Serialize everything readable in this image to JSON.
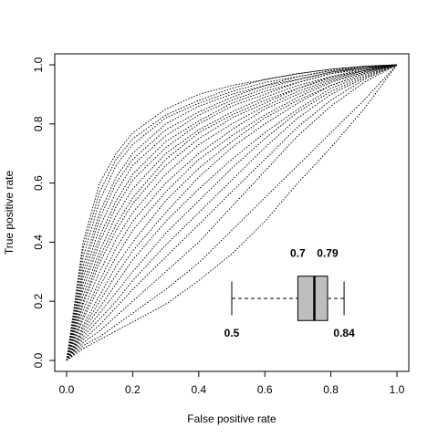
{
  "chart_data": {
    "type": "line",
    "title": "",
    "xlabel": "False positive rate",
    "ylabel": "True positive rate",
    "xlim": [
      0,
      1
    ],
    "ylim": [
      0,
      1
    ],
    "xticks": [
      "0.0",
      "0.2",
      "0.4",
      "0.6",
      "0.8",
      "1.0"
    ],
    "yticks": [
      "0.0",
      "0.2",
      "0.4",
      "0.6",
      "0.8",
      "1.0"
    ],
    "line_style": "dotted",
    "series": [
      {
        "x": [
          0,
          0.05,
          0.1,
          0.15,
          0.2,
          0.3,
          0.4,
          0.5,
          0.6,
          0.7,
          0.8,
          0.9,
          1
        ],
        "y": [
          0,
          0.4,
          0.6,
          0.7,
          0.77,
          0.85,
          0.9,
          0.93,
          0.95,
          0.97,
          0.985,
          0.995,
          1
        ]
      },
      {
        "x": [
          0,
          0.05,
          0.1,
          0.15,
          0.2,
          0.3,
          0.4,
          0.5,
          0.6,
          0.7,
          0.8,
          0.9,
          1
        ],
        "y": [
          0,
          0.38,
          0.57,
          0.68,
          0.75,
          0.83,
          0.88,
          0.92,
          0.95,
          0.97,
          0.985,
          0.995,
          1
        ]
      },
      {
        "x": [
          0,
          0.05,
          0.1,
          0.15,
          0.2,
          0.3,
          0.4,
          0.5,
          0.6,
          0.7,
          0.8,
          0.9,
          1
        ],
        "y": [
          0,
          0.35,
          0.54,
          0.66,
          0.73,
          0.82,
          0.87,
          0.91,
          0.94,
          0.96,
          0.98,
          0.995,
          1
        ]
      },
      {
        "x": [
          0,
          0.05,
          0.1,
          0.15,
          0.2,
          0.3,
          0.4,
          0.5,
          0.6,
          0.7,
          0.8,
          0.9,
          1
        ],
        "y": [
          0,
          0.32,
          0.5,
          0.62,
          0.7,
          0.8,
          0.86,
          0.9,
          0.93,
          0.96,
          0.98,
          0.99,
          1
        ]
      },
      {
        "x": [
          0,
          0.05,
          0.1,
          0.15,
          0.2,
          0.3,
          0.4,
          0.5,
          0.6,
          0.7,
          0.8,
          0.9,
          1
        ],
        "y": [
          0,
          0.3,
          0.48,
          0.6,
          0.68,
          0.78,
          0.84,
          0.89,
          0.93,
          0.95,
          0.975,
          0.99,
          1
        ]
      },
      {
        "x": [
          0,
          0.05,
          0.1,
          0.15,
          0.2,
          0.3,
          0.4,
          0.5,
          0.6,
          0.7,
          0.8,
          0.9,
          1
        ],
        "y": [
          0,
          0.28,
          0.45,
          0.57,
          0.66,
          0.76,
          0.83,
          0.88,
          0.92,
          0.95,
          0.975,
          0.99,
          1
        ]
      },
      {
        "x": [
          0,
          0.05,
          0.1,
          0.15,
          0.2,
          0.3,
          0.4,
          0.5,
          0.6,
          0.7,
          0.8,
          0.9,
          1
        ],
        "y": [
          0,
          0.26,
          0.42,
          0.54,
          0.63,
          0.74,
          0.81,
          0.87,
          0.91,
          0.94,
          0.97,
          0.99,
          1
        ]
      },
      {
        "x": [
          0,
          0.05,
          0.1,
          0.15,
          0.2,
          0.3,
          0.4,
          0.5,
          0.6,
          0.7,
          0.8,
          0.9,
          1
        ],
        "y": [
          0,
          0.24,
          0.4,
          0.52,
          0.61,
          0.72,
          0.8,
          0.86,
          0.9,
          0.94,
          0.97,
          0.985,
          1
        ]
      },
      {
        "x": [
          0,
          0.05,
          0.1,
          0.15,
          0.2,
          0.3,
          0.4,
          0.5,
          0.6,
          0.7,
          0.8,
          0.9,
          1
        ],
        "y": [
          0,
          0.22,
          0.37,
          0.49,
          0.58,
          0.7,
          0.78,
          0.84,
          0.89,
          0.93,
          0.96,
          0.985,
          1
        ]
      },
      {
        "x": [
          0,
          0.05,
          0.1,
          0.15,
          0.2,
          0.3,
          0.4,
          0.5,
          0.6,
          0.7,
          0.8,
          0.9,
          1
        ],
        "y": [
          0,
          0.2,
          0.35,
          0.46,
          0.55,
          0.68,
          0.77,
          0.83,
          0.88,
          0.92,
          0.96,
          0.98,
          1
        ]
      },
      {
        "x": [
          0,
          0.05,
          0.1,
          0.15,
          0.2,
          0.3,
          0.4,
          0.5,
          0.6,
          0.7,
          0.8,
          0.9,
          1
        ],
        "y": [
          0,
          0.19,
          0.33,
          0.44,
          0.53,
          0.66,
          0.75,
          0.82,
          0.87,
          0.92,
          0.955,
          0.98,
          1
        ]
      },
      {
        "x": [
          0,
          0.05,
          0.1,
          0.15,
          0.2,
          0.3,
          0.4,
          0.5,
          0.6,
          0.7,
          0.8,
          0.9,
          1
        ],
        "y": [
          0,
          0.17,
          0.3,
          0.41,
          0.5,
          0.63,
          0.73,
          0.8,
          0.86,
          0.91,
          0.95,
          0.98,
          1
        ]
      },
      {
        "x": [
          0,
          0.05,
          0.1,
          0.15,
          0.2,
          0.3,
          0.4,
          0.5,
          0.6,
          0.7,
          0.8,
          0.9,
          1
        ],
        "y": [
          0,
          0.15,
          0.27,
          0.38,
          0.47,
          0.6,
          0.7,
          0.78,
          0.85,
          0.9,
          0.945,
          0.975,
          1
        ]
      },
      {
        "x": [
          0,
          0.05,
          0.1,
          0.15,
          0.2,
          0.3,
          0.4,
          0.5,
          0.6,
          0.7,
          0.8,
          0.9,
          1
        ],
        "y": [
          0,
          0.14,
          0.25,
          0.35,
          0.44,
          0.57,
          0.68,
          0.76,
          0.83,
          0.89,
          0.94,
          0.975,
          1
        ]
      },
      {
        "x": [
          0,
          0.05,
          0.1,
          0.15,
          0.2,
          0.3,
          0.4,
          0.5,
          0.6,
          0.7,
          0.8,
          0.9,
          1
        ],
        "y": [
          0,
          0.12,
          0.22,
          0.32,
          0.4,
          0.54,
          0.65,
          0.74,
          0.82,
          0.88,
          0.93,
          0.97,
          1
        ]
      },
      {
        "x": [
          0,
          0.05,
          0.1,
          0.15,
          0.2,
          0.3,
          0.4,
          0.5,
          0.6,
          0.7,
          0.8,
          0.9,
          1
        ],
        "y": [
          0,
          0.11,
          0.2,
          0.29,
          0.37,
          0.5,
          0.62,
          0.72,
          0.8,
          0.87,
          0.93,
          0.97,
          1
        ]
      },
      {
        "x": [
          0,
          0.05,
          0.1,
          0.15,
          0.2,
          0.3,
          0.4,
          0.5,
          0.6,
          0.7,
          0.8,
          0.9,
          1
        ],
        "y": [
          0,
          0.1,
          0.18,
          0.26,
          0.34,
          0.47,
          0.58,
          0.68,
          0.77,
          0.85,
          0.92,
          0.965,
          1
        ]
      },
      {
        "x": [
          0,
          0.05,
          0.1,
          0.15,
          0.2,
          0.3,
          0.4,
          0.5,
          0.6,
          0.7,
          0.8,
          0.9,
          1
        ],
        "y": [
          0,
          0.09,
          0.16,
          0.23,
          0.3,
          0.43,
          0.54,
          0.65,
          0.75,
          0.84,
          0.91,
          0.96,
          1
        ]
      },
      {
        "x": [
          0,
          0.05,
          0.1,
          0.15,
          0.2,
          0.3,
          0.4,
          0.5,
          0.6,
          0.7,
          0.8,
          0.9,
          1
        ],
        "y": [
          0,
          0.08,
          0.14,
          0.2,
          0.27,
          0.39,
          0.5,
          0.61,
          0.72,
          0.82,
          0.9,
          0.955,
          1
        ]
      },
      {
        "x": [
          0,
          0.05,
          0.1,
          0.15,
          0.2,
          0.3,
          0.4,
          0.5,
          0.6,
          0.7,
          0.8,
          0.9,
          1
        ],
        "y": [
          0,
          0.07,
          0.12,
          0.18,
          0.24,
          0.35,
          0.46,
          0.57,
          0.68,
          0.79,
          0.88,
          0.95,
          1
        ]
      },
      {
        "x": [
          0,
          0.05,
          0.1,
          0.15,
          0.2,
          0.3,
          0.4,
          0.5,
          0.6,
          0.7,
          0.8,
          0.9,
          1
        ],
        "y": [
          0,
          0.06,
          0.1,
          0.15,
          0.2,
          0.3,
          0.4,
          0.52,
          0.64,
          0.76,
          0.86,
          0.94,
          1
        ]
      },
      {
        "x": [
          0,
          0.05,
          0.1,
          0.15,
          0.2,
          0.3,
          0.4,
          0.5,
          0.6,
          0.7,
          0.8,
          0.9,
          1
        ],
        "y": [
          0,
          0.05,
          0.08,
          0.12,
          0.16,
          0.24,
          0.33,
          0.44,
          0.55,
          0.66,
          0.77,
          0.88,
          1
        ]
      },
      {
        "x": [
          0,
          0.05,
          0.1,
          0.15,
          0.2,
          0.3,
          0.4,
          0.5,
          0.6,
          0.7,
          0.8,
          0.9,
          1
        ],
        "y": [
          0,
          0.04,
          0.07,
          0.1,
          0.13,
          0.19,
          0.27,
          0.36,
          0.47,
          0.6,
          0.72,
          0.85,
          1
        ]
      }
    ],
    "annotations": [
      {
        "text": "0.7",
        "x": 0.7,
        "y": 0.35
      },
      {
        "text": "0.79",
        "x": 0.79,
        "y": 0.35
      },
      {
        "text": "0.5",
        "x": 0.5,
        "y": 0.08
      },
      {
        "text": "0.84",
        "x": 0.84,
        "y": 0.08
      }
    ],
    "boxplot": {
      "orientation": "horizontal",
      "y_center": 0.21,
      "box_half_height": 0.075,
      "whisker_low": 0.5,
      "q1": 0.7,
      "median": 0.75,
      "q3": 0.79,
      "whisker_high": 0.84,
      "fill": "#bebebe"
    }
  }
}
